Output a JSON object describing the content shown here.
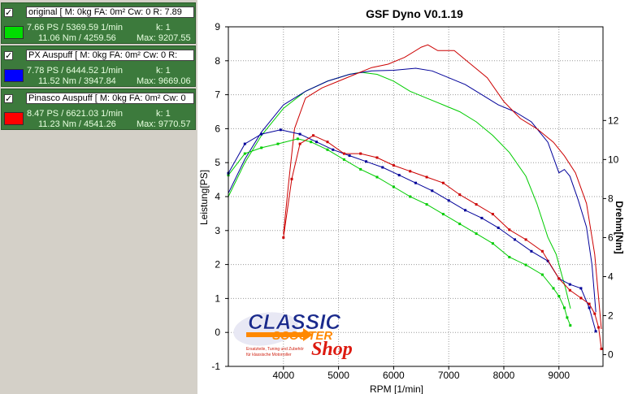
{
  "legend": [
    {
      "checked": "✓",
      "title": "original [ M: 0kg  FA: 0m²  Cw: 0  R: 7.89",
      "color": "#00dd00",
      "power": "7.66 PS / 5369.59 1/min",
      "torque": "11.06 Nm / 4259.56",
      "k": "k: 1",
      "max": "Max: 9207.55"
    },
    {
      "checked": "✓",
      "title": "PX Auspuff [ M: 0kg  FA: 0m²  Cw: 0  R:",
      "color": "#0000ff",
      "power": "7.78 PS / 6444.52 1/min",
      "torque": "11.52 Nm / 3947.84",
      "k": "k: 1",
      "max": "Max: 9669.06"
    },
    {
      "checked": "✓",
      "title": "Pinasco Auspuff [ M: 0kg  FA: 0m²  Cw: 0",
      "color": "#ff0000",
      "power": "8.47 PS / 6621.03 1/min",
      "torque": "11.23 Nm / 4541.26",
      "k": "k: 1",
      "max": "Max: 9770.57"
    }
  ],
  "logo": {
    "line1": "CLASSIC",
    "line2": "SCOOTER",
    "line3": "Shop",
    "tagline1": "Ersatzteile, Tuning und Zubehör",
    "tagline2": "für klassische Motorroller"
  },
  "chart_data": {
    "type": "line",
    "title": "GSF Dyno V0.1.19",
    "xlabel": "RPM [1/min]",
    "ylabel": "Leistung[PS]",
    "y2label": "Drehm[Nm]",
    "xlim": [
      3000,
      9800
    ],
    "ylim": [
      -1,
      9
    ],
    "y2lim": [
      -0.6,
      16.8
    ],
    "x_ticks": [
      4000,
      5000,
      6000,
      7000,
      8000,
      9000
    ],
    "y_ticks": [
      -1,
      0,
      1,
      2,
      3,
      4,
      5,
      6,
      7,
      8,
      9
    ],
    "y2_ticks": [
      0,
      2,
      4,
      6,
      8,
      10,
      12
    ],
    "grid": true,
    "series": [
      {
        "kind": "power",
        "color": "#00cc00",
        "x": [
          3000,
          3300,
          3600,
          4000,
          4400,
          4800,
          5200,
          5400,
          5700,
          6000,
          6300,
          6600,
          6900,
          7200,
          7500,
          7800,
          8100,
          8400,
          8600,
          8800,
          8950,
          9050,
          9120,
          9180,
          9210
        ],
        "y": [
          4.0,
          5.0,
          5.8,
          6.6,
          7.1,
          7.4,
          7.6,
          7.66,
          7.6,
          7.4,
          7.1,
          6.9,
          6.7,
          6.5,
          6.2,
          5.8,
          5.3,
          4.6,
          3.8,
          2.8,
          2.3,
          1.7,
          1.3,
          0.9,
          0.7
        ]
      },
      {
        "kind": "power",
        "color": "#000099",
        "x": [
          3000,
          3300,
          3600,
          4000,
          4400,
          4800,
          5200,
          5600,
          6000,
          6400,
          6700,
          7000,
          7300,
          7600,
          7900,
          8200,
          8500,
          8800,
          9000,
          9100,
          9200,
          9350,
          9500,
          9600,
          9670
        ],
        "y": [
          4.1,
          5.1,
          5.9,
          6.7,
          7.1,
          7.4,
          7.6,
          7.7,
          7.72,
          7.78,
          7.7,
          7.5,
          7.3,
          7.0,
          6.7,
          6.5,
          6.2,
          5.6,
          4.7,
          4.8,
          4.6,
          3.9,
          3.1,
          2.0,
          0.6
        ]
      },
      {
        "kind": "power",
        "color": "#cc0000",
        "x": [
          4000,
          4100,
          4200,
          4400,
          4700,
          5000,
          5300,
          5600,
          5900,
          6200,
          6500,
          6621,
          6800,
          7100,
          7400,
          7700,
          8000,
          8300,
          8600,
          8900,
          9100,
          9300,
          9500,
          9650,
          9770
        ],
        "y": [
          2.9,
          4.5,
          6.0,
          6.9,
          7.2,
          7.4,
          7.6,
          7.8,
          7.9,
          8.1,
          8.4,
          8.47,
          8.3,
          8.3,
          7.9,
          7.5,
          6.8,
          6.3,
          6.0,
          5.6,
          5.2,
          4.7,
          3.8,
          2.3,
          0.1
        ]
      },
      {
        "kind": "torque",
        "color": "#00cc00",
        "x": [
          3000,
          3300,
          3600,
          3900,
          4259.56,
          4500,
          4800,
          5100,
          5400,
          5700,
          6000,
          6300,
          6600,
          6900,
          7200,
          7500,
          7800,
          8100,
          8400,
          8700,
          8900,
          9000,
          9100,
          9150,
          9207.55
        ],
        "y": [
          9.2,
          10.3,
          10.6,
          10.8,
          11.06,
          10.9,
          10.5,
          10.0,
          9.5,
          9.1,
          8.6,
          8.1,
          7.7,
          7.2,
          6.7,
          6.2,
          5.7,
          5.0,
          4.6,
          4.1,
          3.4,
          3.0,
          2.4,
          1.9,
          1.5
        ]
      },
      {
        "kind": "torque",
        "color": "#000099",
        "x": [
          3000,
          3300,
          3600,
          3947.84,
          4300,
          4600,
          4900,
          5200,
          5500,
          5800,
          6100,
          6400,
          6700,
          7000,
          7300,
          7600,
          7900,
          8200,
          8500,
          8800,
          9000,
          9200,
          9400,
          9550,
          9669.06
        ],
        "y": [
          9.3,
          10.8,
          11.3,
          11.52,
          11.3,
          10.9,
          10.5,
          10.2,
          9.9,
          9.6,
          9.2,
          8.8,
          8.4,
          7.9,
          7.4,
          7.0,
          6.5,
          5.9,
          5.3,
          4.8,
          3.9,
          3.6,
          3.4,
          2.4,
          1.2
        ]
      },
      {
        "kind": "torque",
        "color": "#cc0000",
        "x": [
          4000,
          4150,
          4300,
          4541.26,
          4800,
          5100,
          5400,
          5700,
          6000,
          6300,
          6600,
          6900,
          7200,
          7500,
          7800,
          8100,
          8400,
          8700,
          9000,
          9200,
          9400,
          9550,
          9650,
          9720,
          9770.57
        ],
        "y": [
          6.0,
          9.0,
          10.8,
          11.23,
          10.9,
          10.3,
          10.3,
          10.1,
          9.7,
          9.4,
          9.1,
          8.8,
          8.2,
          7.7,
          7.2,
          6.4,
          5.9,
          5.3,
          3.9,
          3.3,
          2.9,
          2.6,
          2.1,
          1.4,
          0.3
        ]
      }
    ]
  }
}
